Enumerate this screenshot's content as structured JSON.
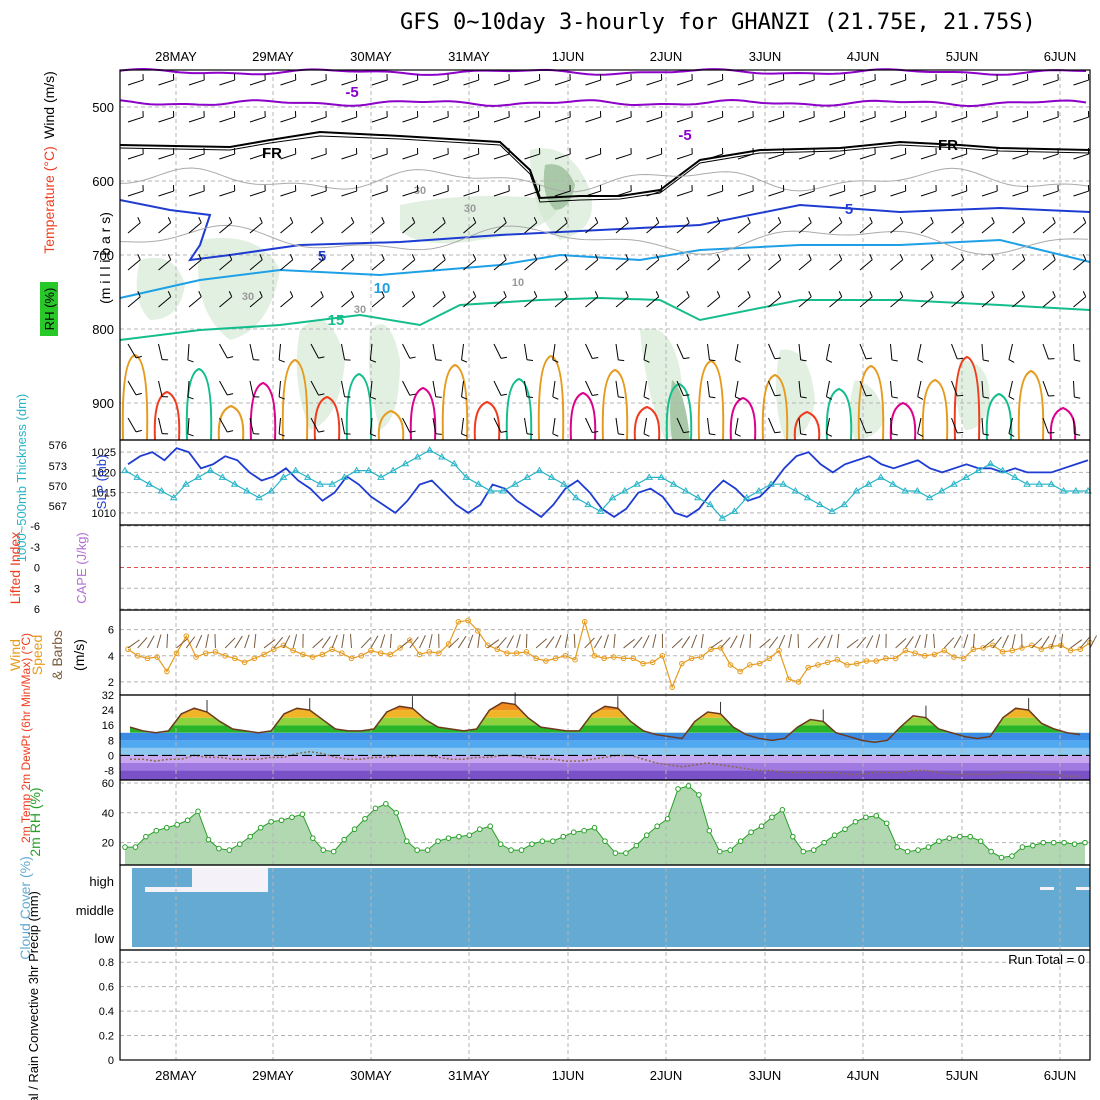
{
  "title": "GFS 0~10day 3-hourly for GHANZI (21.75E, 21.75S)",
  "date_labels": [
    "28MAY",
    "29MAY",
    "30MAY",
    "31MAY",
    "1JUN",
    "2JUN",
    "3JUN",
    "4JUN",
    "5JUN",
    "6JUN"
  ],
  "colors": {
    "bg": "#ffffff",
    "grid": "#b4b4b4",
    "frame": "#000000",
    "purple": "#8c00c8",
    "blue": "#1e3cd2",
    "lightblue": "#1ea0e6",
    "teal": "#14be8c",
    "orange": "#e69b1e",
    "red": "#f03c1e",
    "magenta": "#dc008c",
    "cloud": "#64aad2",
    "rh_fill": "#d2e6d2",
    "rh_line": "#28a028",
    "wind": "#e69b1e",
    "slp": "#1e3cd2",
    "thick": "#28b4c8"
  },
  "panels": {
    "upper_air": {
      "ylabel_parts": [
        "Wind (m/s)",
        "Temperature (°C)",
        "RH (%)"
      ],
      "ylabel_mb": "(m i l l i b a r s)",
      "yticks": [
        500,
        600,
        700,
        800,
        900
      ],
      "ylim": [
        450,
        950
      ],
      "contour_labels": [
        "-5",
        "-5",
        "FR",
        "FR",
        "5",
        "5",
        "10",
        "15",
        "10",
        "30",
        "30",
        "30",
        "30"
      ]
    },
    "thickness": {
      "ylabel_left": "1000~500mb Thickness (dm)",
      "ylabel_right": "SLP (mb)",
      "yticks_left": [
        576,
        573,
        570,
        567
      ],
      "yticks_right": [
        1025,
        1020,
        1015,
        1010
      ]
    },
    "cape": {
      "ylabel_left": "Lifted Index",
      "ylabel_right": "CAPE (J/kg)",
      "yticks": [
        "-6",
        "-3",
        "0",
        "3",
        "6"
      ]
    },
    "wind10m": {
      "ylabel": "10m Wind Speed & Barbs (m/s)",
      "yticks": [
        2,
        4,
        6
      ]
    },
    "temp2m": {
      "ylabel": "2m Temp 2m DewPt (6hr Min/Max) (°C)",
      "yticks": [
        "32",
        "24",
        "16",
        "8",
        "0",
        "-8"
      ]
    },
    "rh2m": {
      "ylabel": "2m RH (%)",
      "yticks": [
        20,
        40,
        60
      ]
    },
    "cloud": {
      "ylabel": "Cloud Cover (%)",
      "levels": [
        "high",
        "middle",
        "low"
      ]
    },
    "precip": {
      "ylabel": "Total / Rain Convective 3hr Precip (mm)",
      "yticks": [
        "0",
        "0.2",
        "0.4",
        "0.6",
        "0.8"
      ],
      "run_total": "Run Total = 0"
    }
  },
  "chart_data": [
    {
      "type": "line",
      "title": "1000~500mb Thickness (dm) and SLP (mb)",
      "x_unit": "3-hourly steps from 27MAY 12Z",
      "series": [
        {
          "name": "SLP (mb)",
          "axis": "right",
          "ylim": [
            1007,
            1028
          ],
          "values": [
            1022,
            1024,
            1025,
            1023,
            1026,
            1025,
            1021,
            1022,
            1024,
            1023,
            1020,
            1018,
            1019,
            1021,
            1018,
            1016,
            1013,
            1015,
            1019,
            1017,
            1014,
            1012,
            1010,
            1013,
            1017,
            1018,
            1015,
            1012,
            1010,
            1012,
            1017,
            1016,
            1013,
            1011,
            1009,
            1012,
            1016,
            1018,
            1015,
            1011,
            1009,
            1011,
            1015,
            1016,
            1014,
            1010,
            1009,
            1011,
            1015,
            1018,
            1016,
            1013,
            1014,
            1017,
            1021,
            1024,
            1025,
            1022,
            1020,
            1022,
            1023,
            1024,
            1022,
            1021,
            1022,
            1023,
            1021,
            1020,
            1021,
            1022,
            1021,
            1021,
            1020,
            1021,
            1020,
            1020,
            1020,
            1021,
            1022,
            1023
          ]
        },
        {
          "name": "1000~500mb Thickness (dm)",
          "axis": "left",
          "ylim": [
            565,
            577.5
          ],
          "values": [
            573,
            572,
            571,
            570,
            569,
            571,
            572,
            573,
            572,
            571,
            570,
            569,
            570,
            572,
            573,
            572,
            571,
            571,
            572,
            573,
            573,
            572,
            573,
            574,
            575,
            576,
            575,
            574,
            572,
            571,
            570,
            570,
            571,
            572,
            573,
            572,
            571,
            569,
            568,
            567,
            569,
            570,
            571,
            572,
            572,
            571,
            570,
            569,
            568,
            566,
            567,
            569,
            570,
            571,
            571,
            570,
            569,
            568,
            567,
            568,
            570,
            571,
            572,
            571,
            570,
            570,
            569,
            570,
            571,
            572,
            573,
            574,
            573,
            572,
            571,
            571,
            571,
            570,
            570,
            570
          ]
        }
      ]
    },
    {
      "type": "line",
      "title": "10m Wind Speed (m/s)",
      "ylim": [
        1,
        7.5
      ],
      "series": [
        {
          "name": "10m Wind Speed",
          "values": [
            4.5,
            4,
            3.8,
            3.9,
            2.8,
            4.2,
            5.5,
            3.9,
            4.2,
            4.3,
            4,
            3.8,
            3.5,
            3.8,
            4.1,
            4.5,
            4.8,
            4.4,
            4.1,
            3.9,
            4.1,
            4.5,
            4.2,
            3.8,
            4,
            4.4,
            4.2,
            4.1,
            4.6,
            5.2,
            4.1,
            4.3,
            4.2,
            4.9,
            6.6,
            6.7,
            5.9,
            4.8,
            4.5,
            4.2,
            4.2,
            4.3,
            3.8,
            3.6,
            3.8,
            4,
            3.7,
            6.6,
            4,
            3.8,
            3.9,
            3.8,
            3.8,
            3.4,
            3.5,
            4,
            1.6,
            3.4,
            3.8,
            3.9,
            4.5,
            4.6,
            3.3,
            2.8,
            3.3,
            3.4,
            3.8,
            4.4,
            2.2,
            2,
            3.1,
            3.3,
            3.5,
            3.7,
            3.3,
            3.4,
            3.6,
            3.6,
            3.8,
            3.8,
            4.4,
            4.2,
            4,
            4.1,
            4.4,
            3.9,
            3.8,
            4.5,
            4.6,
            4.8,
            4.3,
            4.4,
            4.6,
            4.8,
            4.5,
            4.7,
            4.8,
            4.4,
            4.5,
            5
          ]
        }
      ]
    },
    {
      "type": "area",
      "title": "2m Temp / 2m DewPt (°C)",
      "ylim": [
        -13,
        32
      ],
      "series": [
        {
          "name": "2m Temp",
          "values": [
            15,
            13,
            12,
            13,
            22,
            25,
            23,
            18,
            14,
            13,
            12,
            13,
            22,
            25,
            24,
            19,
            14,
            13,
            13,
            14,
            23,
            26,
            25,
            19,
            15,
            14,
            13,
            14,
            24,
            28,
            27,
            20,
            15,
            14,
            13,
            13,
            22,
            26,
            25,
            18,
            13,
            11,
            10,
            9,
            18,
            23,
            22,
            15,
            11,
            9,
            8,
            9,
            15,
            19,
            18,
            12,
            10,
            8,
            7,
            8,
            15,
            21,
            20,
            14,
            12,
            10,
            9,
            10,
            20,
            25,
            24,
            17,
            14,
            12,
            11
          ]
        },
        {
          "name": "2m DewPt",
          "values": [
            -2,
            -2,
            -3,
            -2,
            -2,
            0,
            -1,
            -1,
            -2,
            -2,
            -2,
            -1,
            -1,
            1,
            2,
            1,
            -1,
            -2,
            -2,
            -1,
            -1,
            0,
            0,
            0,
            -1,
            -2,
            -2,
            -1,
            -1,
            0,
            0,
            -1,
            -2,
            -2,
            -3,
            -3,
            -2,
            -1,
            0,
            0,
            -2,
            -4,
            -5,
            -6,
            -5,
            -4,
            -5,
            -6,
            -7,
            -8,
            -8,
            -9,
            -9,
            -9,
            -9,
            -9,
            -10,
            -10,
            -9,
            -9,
            -9,
            -8,
            -8,
            -9,
            -10,
            -10,
            -10,
            -10,
            -9,
            -9,
            -9,
            -10,
            -10,
            -11,
            -11
          ]
        }
      ]
    },
    {
      "type": "area",
      "title": "2m RH (%)",
      "ylim": [
        5,
        62
      ],
      "series": [
        {
          "name": "2m RH",
          "values": [
            17,
            17,
            24,
            28,
            30,
            32,
            35,
            41,
            22,
            16,
            15,
            19,
            24,
            30,
            34,
            35,
            37,
            39,
            23,
            15,
            14,
            22,
            29,
            36,
            43,
            46,
            40,
            21,
            15,
            15,
            21,
            23,
            24,
            25,
            29,
            31,
            19,
            15,
            15,
            19,
            21,
            21,
            24,
            27,
            28,
            30,
            21,
            13,
            13,
            18,
            25,
            31,
            36,
            56,
            58,
            52,
            28,
            14,
            15,
            21,
            27,
            31,
            37,
            42,
            24,
            14,
            15,
            20,
            25,
            29,
            34,
            37,
            38,
            33,
            17,
            14,
            15,
            17,
            21,
            23,
            24,
            24,
            21,
            14,
            10,
            11,
            17,
            18,
            20,
            20,
            20,
            19,
            20
          ]
        }
      ]
    }
  ]
}
